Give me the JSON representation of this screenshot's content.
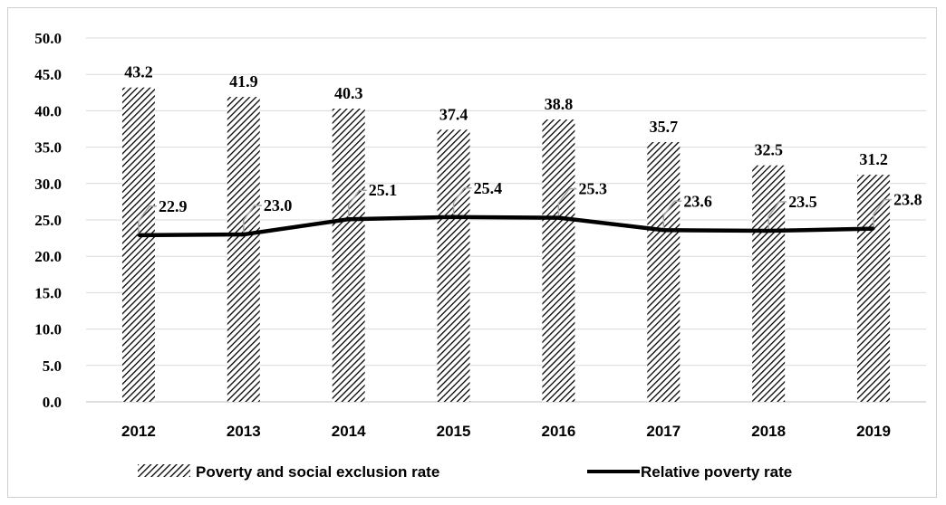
{
  "chart_data": {
    "type": "bar",
    "categories": [
      "2012",
      "2013",
      "2014",
      "2015",
      "2016",
      "2017",
      "2018",
      "2019"
    ],
    "series": [
      {
        "name": "Poverty and social exclusion rate",
        "type": "bar",
        "pattern": "diagonal-hatch",
        "values": [
          43.2,
          41.9,
          40.3,
          37.4,
          38.8,
          35.7,
          32.5,
          31.2
        ],
        "labels": [
          "43.2",
          "41.9",
          "40.3",
          "37.4",
          "38.8",
          "35.7",
          "32.5",
          "31.2"
        ]
      },
      {
        "name": "Relative poverty rate",
        "type": "line",
        "color": "#000000",
        "values": [
          22.9,
          23.0,
          25.1,
          25.4,
          25.3,
          23.6,
          23.5,
          23.8
        ],
        "labels": [
          "22.9",
          "23.0",
          "25.1",
          "25.4",
          "25.3",
          "23.6",
          "23.5",
          "23.8"
        ]
      }
    ],
    "ylim": [
      0,
      50
    ],
    "yticks": [
      "0.0",
      "5.0",
      "10.0",
      "15.0",
      "20.0",
      "25.0",
      "30.0",
      "35.0",
      "40.0",
      "45.0",
      "50.0"
    ],
    "grid": true,
    "legend_position": "bottom",
    "title": "",
    "xlabel": "",
    "ylabel": ""
  }
}
